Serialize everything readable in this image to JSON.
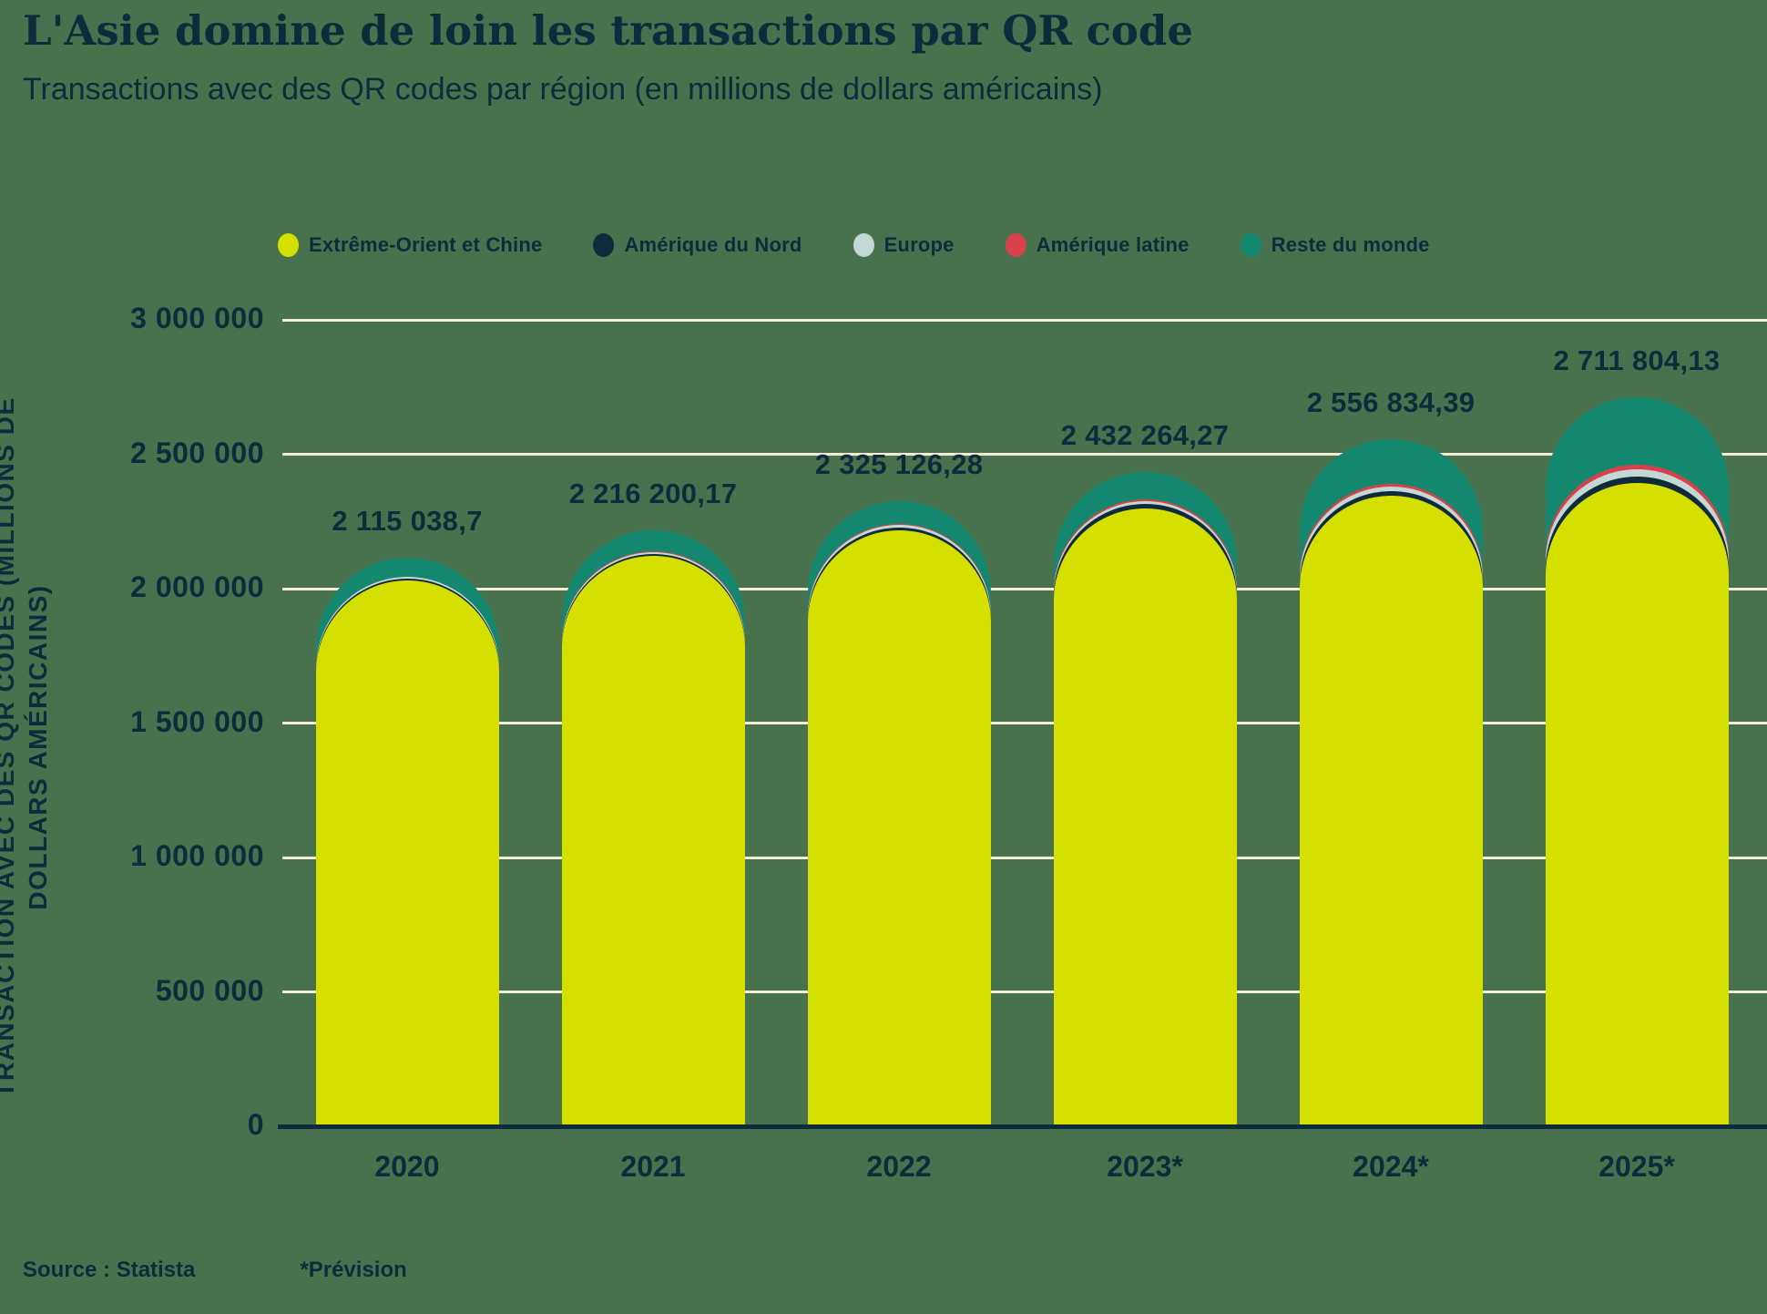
{
  "title": "L'Asie domine de loin les transactions par QR code",
  "subtitle": "Transactions avec des QR codes par région (en millions de dollars américains)",
  "source_label": "Source : Statista",
  "footnote": "*Prévision",
  "colors": {
    "background": "#48724E",
    "text": "#0E2A3B",
    "gridline": "#F3EDD5",
    "axis": "#0E2A3B"
  },
  "chart_data": {
    "type": "bar",
    "stacked": true,
    "categories": [
      "2020",
      "2021",
      "2022",
      "2023*",
      "2024*",
      "2025*"
    ],
    "series": [
      {
        "name": "Extrême-Orient et Chine",
        "color": "#D6E000",
        "values": [
          2031000,
          2122000,
          2218000,
          2300000,
          2346000,
          2393000
        ]
      },
      {
        "name": "Amérique du Nord",
        "color": "#0E2A3B",
        "values": [
          7000,
          8000,
          10000,
          14000,
          17000,
          24000
        ]
      },
      {
        "name": "Europe",
        "color": "#C3D8D4",
        "values": [
          5000,
          6000,
          8000,
          11000,
          17000,
          27000
        ]
      },
      {
        "name": "Amérique latine",
        "color": "#D8414B",
        "values": [
          2038.7,
          3200.17,
          4126.28,
          6264.27,
          9834.39,
          17804.13
        ]
      },
      {
        "name": "Reste du monde",
        "color": "#13886F",
        "values": [
          70000,
          77000,
          85000,
          101000,
          167000,
          250000
        ]
      }
    ],
    "totals": [
      2115038.7,
      2216200.17,
      2325126.28,
      2432264.27,
      2556834.39,
      2711804.13
    ],
    "total_labels": [
      "2 115 038,7",
      "2 216 200,17",
      "2 325 126,28",
      "2 432 264,27",
      "2 556 834,39",
      "2 711 804,13"
    ],
    "segment_values_estimated": true,
    "ylabel": "TRANSACTION AVEC DES QR CODES (MILLIONS DE\nDOLLARS AMÉRICAINS)",
    "yticks": [
      0,
      500000,
      1000000,
      1500000,
      2000000,
      2500000,
      3000000
    ],
    "ytick_labels": [
      "0",
      "500 000",
      "1 000 000",
      "1 500 000",
      "2 000 000",
      "2 500 000",
      "3 000 000"
    ],
    "ylim": [
      0,
      3000000
    ],
    "grid": true,
    "legend_position": "top"
  }
}
